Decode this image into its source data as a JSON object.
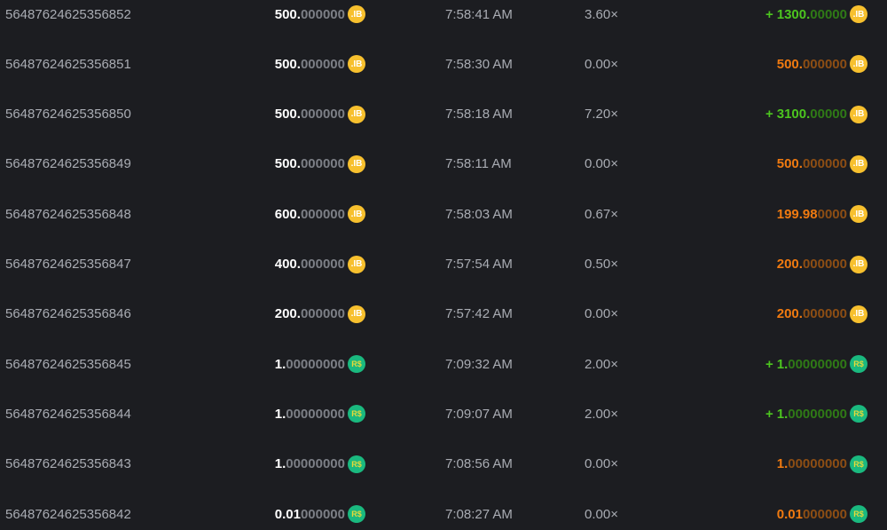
{
  "colors": {
    "background": "#1c1d21",
    "win": "#4cc51f",
    "loss": "#f07a10",
    "ib_coin": "#f7c02e",
    "rs_coin": "#1ab97f"
  },
  "currencies": {
    "ib": {
      "label": ".IB",
      "icon": "ib-coin-icon"
    },
    "rs": {
      "label": "R$",
      "icon": "robux-coin-icon"
    }
  },
  "rows": [
    {
      "id": "56487624625356852",
      "bet_main": "500.",
      "bet_dim": "000000",
      "currency": "ib",
      "time": "7:58:41 AM",
      "multiplier": "3.60×",
      "result": "win",
      "sign": "+",
      "pay_main": "1300.",
      "pay_dim": "00000"
    },
    {
      "id": "56487624625356851",
      "bet_main": "500.",
      "bet_dim": "000000",
      "currency": "ib",
      "time": "7:58:30 AM",
      "multiplier": "0.00×",
      "result": "loss",
      "sign": "",
      "pay_main": "500.",
      "pay_dim": "000000"
    },
    {
      "id": "56487624625356850",
      "bet_main": "500.",
      "bet_dim": "000000",
      "currency": "ib",
      "time": "7:58:18 AM",
      "multiplier": "7.20×",
      "result": "win",
      "sign": "+",
      "pay_main": "3100.",
      "pay_dim": "00000"
    },
    {
      "id": "56487624625356849",
      "bet_main": "500.",
      "bet_dim": "000000",
      "currency": "ib",
      "time": "7:58:11 AM",
      "multiplier": "0.00×",
      "result": "loss",
      "sign": "",
      "pay_main": "500.",
      "pay_dim": "000000"
    },
    {
      "id": "56487624625356848",
      "bet_main": "600.",
      "bet_dim": "000000",
      "currency": "ib",
      "time": "7:58:03 AM",
      "multiplier": "0.67×",
      "result": "loss",
      "sign": "",
      "pay_main": "199.98",
      "pay_dim": "0000"
    },
    {
      "id": "56487624625356847",
      "bet_main": "400.",
      "bet_dim": "000000",
      "currency": "ib",
      "time": "7:57:54 AM",
      "multiplier": "0.50×",
      "result": "loss",
      "sign": "",
      "pay_main": "200.",
      "pay_dim": "000000"
    },
    {
      "id": "56487624625356846",
      "bet_main": "200.",
      "bet_dim": "000000",
      "currency": "ib",
      "time": "7:57:42 AM",
      "multiplier": "0.00×",
      "result": "loss",
      "sign": "",
      "pay_main": "200.",
      "pay_dim": "000000"
    },
    {
      "id": "56487624625356845",
      "bet_main": "1.",
      "bet_dim": "00000000",
      "currency": "rs",
      "time": "7:09:32 AM",
      "multiplier": "2.00×",
      "result": "win",
      "sign": "+",
      "pay_main": "1.",
      "pay_dim": "00000000"
    },
    {
      "id": "56487624625356844",
      "bet_main": "1.",
      "bet_dim": "00000000",
      "currency": "rs",
      "time": "7:09:07 AM",
      "multiplier": "2.00×",
      "result": "win",
      "sign": "+",
      "pay_main": "1.",
      "pay_dim": "00000000"
    },
    {
      "id": "56487624625356843",
      "bet_main": "1.",
      "bet_dim": "00000000",
      "currency": "rs",
      "time": "7:08:56 AM",
      "multiplier": "0.00×",
      "result": "loss",
      "sign": "",
      "pay_main": "1.",
      "pay_dim": "00000000"
    },
    {
      "id": "56487624625356842",
      "bet_main": "0.01",
      "bet_dim": "000000",
      "currency": "rs",
      "time": "7:08:27 AM",
      "multiplier": "0.00×",
      "result": "loss",
      "sign": "",
      "pay_main": "0.01",
      "pay_dim": "000000"
    }
  ]
}
